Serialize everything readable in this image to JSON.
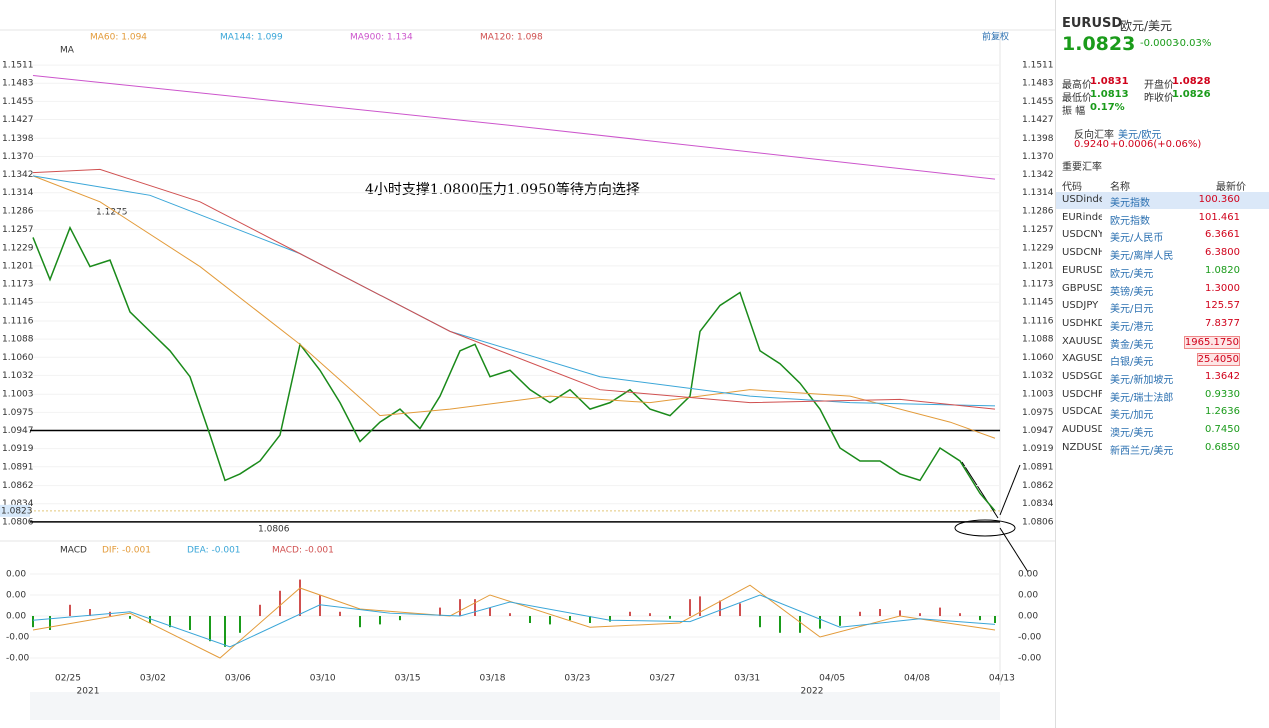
{
  "chart_data": {
    "type": "line",
    "annotation": "4小时支撑1.0800压力1.0950等待方向选择",
    "ma_header": "MA",
    "adjust": "前复权",
    "high_label": "1.1275",
    "low_label": "1.0806",
    "current_label": "1.0823",
    "categories": [
      "02/25",
      "03/02",
      "03/06",
      "03/10",
      "03/15",
      "03/18",
      "03/23",
      "03/27",
      "03/31",
      "04/05",
      "04/08",
      "04/13"
    ],
    "years": [
      "2021",
      "2022"
    ],
    "xlim": [
      0,
      970
    ],
    "ylim": [
      1.0778,
      1.1542
    ],
    "yticks": [
      1.1511,
      1.1483,
      1.1455,
      1.1427,
      1.1398,
      {
        "value": 1.137,
        "label": "1.1370"
      },
      1.1342,
      1.1314,
      1.1286,
      1.1257,
      1.1229,
      1.1201,
      1.1173,
      1.1145,
      1.1116,
      1.1088,
      {
        "value": 1.106,
        "label": "1.1060"
      },
      1.1032,
      1.1003,
      1.0975,
      1.0947,
      1.0919,
      1.0891,
      1.0862,
      1.0834,
      1.0806
    ],
    "hlines": [
      1.0947,
      1.0806
    ],
    "series": [
      {
        "name": "EURUSD",
        "color": "#1a8a1a",
        "x": [
          3,
          20,
          40,
          60,
          80,
          100,
          120,
          140,
          160,
          180,
          195,
          210,
          230,
          250,
          270,
          290,
          310,
          330,
          350,
          370,
          390,
          410,
          430,
          445,
          460,
          480,
          500,
          520,
          540,
          560,
          580,
          600,
          620,
          640,
          660,
          670,
          690,
          710,
          730,
          750,
          770,
          790,
          810,
          830,
          850,
          870,
          890,
          910,
          930,
          950,
          965
        ],
        "values": [
          1.1245,
          1.118,
          1.126,
          1.12,
          1.121,
          1.113,
          1.11,
          1.107,
          1.103,
          1.094,
          1.087,
          1.088,
          1.09,
          1.094,
          1.108,
          1.104,
          1.099,
          1.093,
          1.096,
          1.098,
          1.095,
          1.1,
          1.107,
          1.108,
          1.103,
          1.104,
          1.101,
          1.099,
          1.101,
          1.098,
          1.099,
          1.101,
          1.098,
          1.097,
          1.1,
          1.11,
          1.114,
          1.116,
          1.107,
          1.105,
          1.102,
          1.098,
          1.092,
          1.09,
          1.09,
          1.088,
          1.087,
          1.092,
          1.09,
          1.085,
          1.0823
        ]
      },
      {
        "name": "MA60: 1.094",
        "color": "#e39b3a",
        "x": [
          3,
          70,
          170,
          270,
          350,
          420,
          520,
          620,
          720,
          820,
          920,
          965
        ],
        "values": [
          1.134,
          1.13,
          1.12,
          1.108,
          1.097,
          1.098,
          1.1,
          1.099,
          1.101,
          1.1,
          1.096,
          1.0935
        ]
      },
      {
        "name": "MA144: 1.099",
        "color": "#3aa6d8",
        "x": [
          3,
          120,
          270,
          420,
          570,
          720,
          820,
          965
        ],
        "values": [
          1.134,
          1.131,
          1.122,
          1.11,
          1.103,
          1.1,
          1.099,
          1.0985
        ]
      },
      {
        "name": "MA900: 1.134",
        "color": "#cc55cc",
        "x": [
          3,
          480,
          965
        ],
        "values": [
          1.1495,
          1.1418,
          1.1335
        ]
      },
      {
        "name": "MA120: 1.098",
        "color": "#d05050",
        "x": [
          3,
          70,
          170,
          270,
          420,
          570,
          720,
          870,
          965
        ],
        "values": [
          1.1345,
          1.135,
          1.13,
          1.122,
          1.11,
          1.101,
          1.099,
          1.0995,
          1.098
        ]
      }
    ],
    "macd": {
      "title": "MACD",
      "dif_label": "DIF: -0.001",
      "dea_label": "DEA: -0.001",
      "macd_label": "MACD: -0.001",
      "ylim": [
        -0.00457,
        0.00414
      ],
      "yticks": [
        {
          "value": 0.003,
          "label": "0.00"
        },
        {
          "value": 0.0015,
          "label": "0.00"
        },
        {
          "value": 0,
          "label": "0.00"
        },
        {
          "value": -0.0015,
          "label": "-0.00"
        },
        {
          "value": -0.003,
          "label": "-0.00"
        }
      ],
      "hist": [
        -0.0008,
        -0.001,
        0.0008,
        0.0005,
        0.0003,
        -0.0002,
        -0.0005,
        -0.0008,
        -0.001,
        -0.0018,
        -0.0022,
        -0.0012,
        0.0008,
        0.0018,
        0.0026,
        0.0015,
        0.0003,
        -0.0008,
        -0.0006,
        -0.0003,
        0,
        0.0006,
        0.0012,
        0.0012,
        0.0006,
        0.0002,
        -0.0005,
        -0.0006,
        -0.0003,
        -0.0005,
        -0.0004,
        0.0003,
        0.0002,
        -0.0002,
        0.0012,
        0.0014,
        0.0011,
        0.0009,
        -0.0008,
        -0.0012,
        -0.0012,
        -0.0009,
        -0.0007,
        0.0003,
        0.0005,
        0.0004,
        0.0002,
        0.0006,
        0.0002,
        -0.0003,
        -0.0005
      ],
      "dif": {
        "color": "#e39b3a",
        "x": [
          3,
          100,
          190,
          270,
          330,
          420,
          460,
          560,
          650,
          720,
          790,
          870,
          965
        ],
        "values": [
          -0.001,
          0.0002,
          -0.003,
          0.002,
          0.0005,
          0,
          0.0015,
          -0.0008,
          -0.0005,
          0.0022,
          -0.0015,
          0,
          -0.001
        ]
      },
      "dea": {
        "color": "#3aa6d8",
        "x": [
          3,
          100,
          200,
          290,
          360,
          430,
          480,
          580,
          660,
          730,
          810,
          890,
          965
        ],
        "values": [
          -0.0003,
          0.0003,
          -0.0022,
          0.0008,
          0.0002,
          0,
          0.001,
          -0.0003,
          -0.0004,
          0.0015,
          -0.0008,
          -0.0002,
          -0.0006
        ]
      }
    }
  },
  "side": {
    "symbol": "EURUSD",
    "name": "欧元/美元",
    "price": "1.0823",
    "change": "-0.0003",
    "pct": "-0.03%",
    "stats": [
      [
        "最高价",
        "1.0831"
      ],
      [
        "开盘价",
        "1.0828"
      ],
      [
        "最低价",
        "1.0813"
      ],
      [
        "昨收价",
        "1.0826"
      ],
      [
        "振 幅",
        "0.17%"
      ]
    ],
    "reverse_title": "反向汇率",
    "reverse_name": "美元/欧元",
    "reverse_price": "0.9240",
    "reverse_change": "+0.0006(+0.06%)",
    "section": "重要汇率",
    "headers": [
      "代码",
      "名称",
      "最新价"
    ],
    "rows": [
      [
        "USDinde",
        "美元指数",
        "100.360",
        "up"
      ],
      [
        "EURindex",
        "欧元指数",
        "101.461",
        "up"
      ],
      [
        "USDCNY",
        "美元/人民币",
        "6.3661",
        "up"
      ],
      [
        "USDCNH",
        "美元/离岸人民币",
        "6.3800",
        "up"
      ],
      [
        "EURUSD",
        "欧元/美元",
        "1.0820",
        "dn"
      ],
      [
        "GBPUSD",
        "英镑/美元",
        "1.3000",
        "up"
      ],
      [
        "USDJPY",
        "美元/日元",
        "125.57",
        "up"
      ],
      [
        "USDHKD",
        "美元/港元",
        "7.8377",
        "up"
      ],
      [
        "XAUUSD",
        "黄金/美元",
        "1965.1750",
        "up"
      ],
      [
        "XAGUSD",
        "白银/美元",
        "25.4050",
        "up"
      ],
      [
        "USDSGD",
        "美元/新加坡元",
        "1.3642",
        "up"
      ],
      [
        "USDCHF",
        "美元/瑞士法郎",
        "0.9330",
        "dn"
      ],
      [
        "USDCAD",
        "美元/加元",
        "1.2636",
        "dn"
      ],
      [
        "AUDUSD",
        "澳元/美元",
        "0.7450",
        "dn"
      ],
      [
        "NZDUSD",
        "新西兰元/美元",
        "0.6850",
        "dn"
      ]
    ]
  }
}
